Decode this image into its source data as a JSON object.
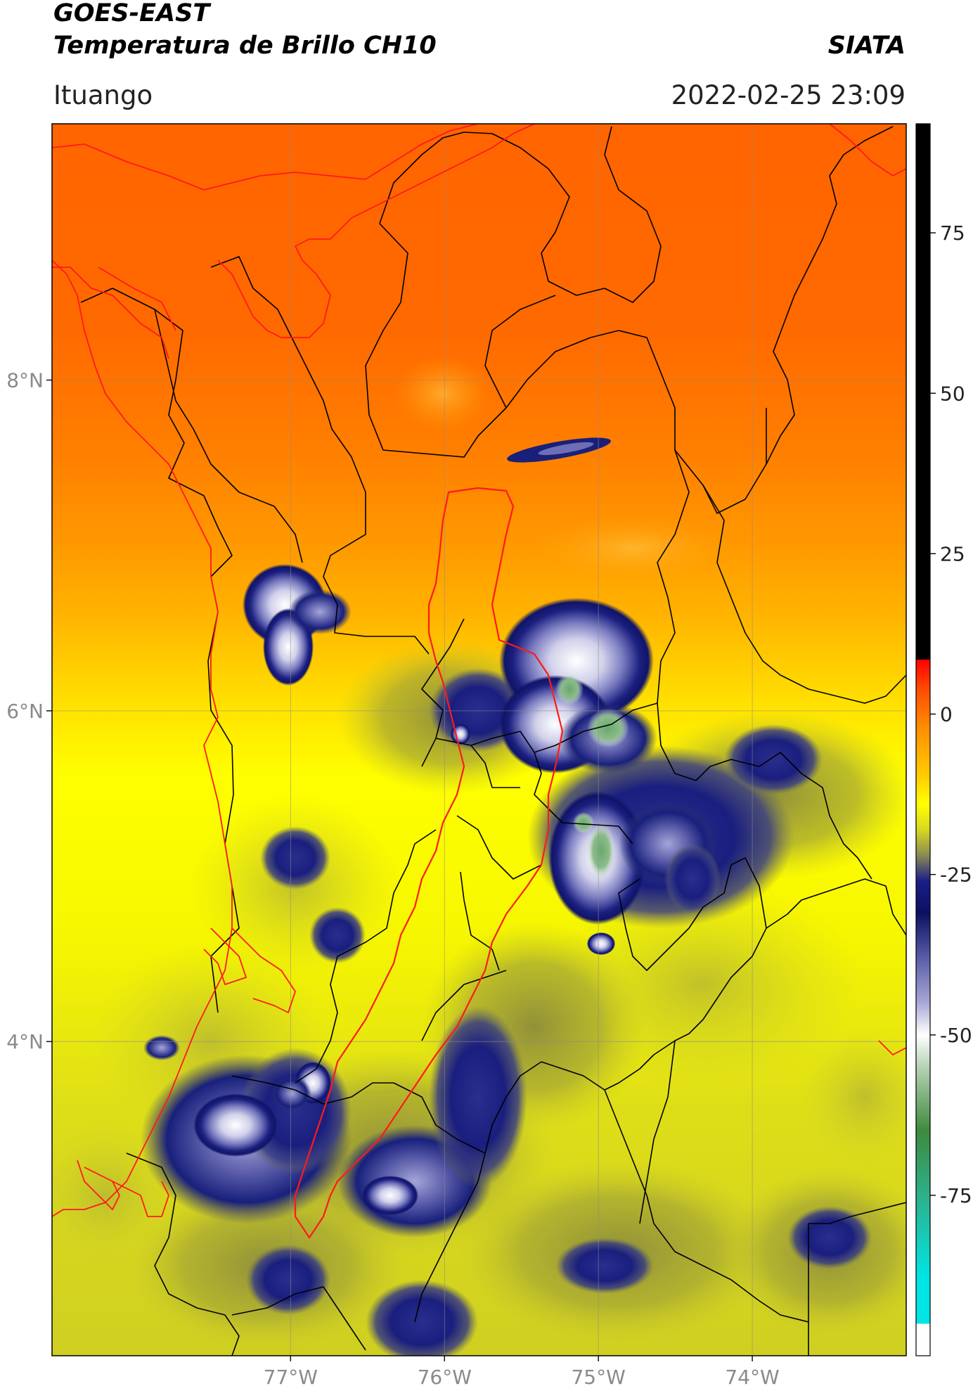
{
  "header": {
    "title_line1": "GOES-EAST",
    "title_line2": "Temperatura de Brillo CH10",
    "brand": "SIATA",
    "region": "Ituango",
    "timestamp": "2022-02-25 23:09"
  },
  "map": {
    "lon_range": [
      -78.55,
      -73.0
    ],
    "lat_range": [
      2.1,
      9.55
    ],
    "lat_ticks": [
      {
        "value": 8,
        "label": "8°N"
      },
      {
        "value": 6,
        "label": "6°N"
      },
      {
        "value": 4,
        "label": "4°N"
      }
    ],
    "lon_ticks": [
      {
        "value": -77,
        "label": "77°W"
      },
      {
        "value": -76,
        "label": "76°W"
      },
      {
        "value": -75,
        "label": "75°W"
      },
      {
        "value": -74,
        "label": "74°W"
      }
    ],
    "gridlines": true,
    "colors": {
      "warm_orange": "#ff6a00",
      "orange": "#ff9a00",
      "yellow": "#ffff00",
      "olive": "#b5b52e",
      "navy": "#141a78",
      "lilac": "#9fa0d4",
      "white": "#ffffff",
      "green": "#5d9e62",
      "border_department": "#000000",
      "border_antioquia": "#ff1a1a"
    },
    "cold_cloud_cells": [
      {
        "lon": -77.0,
        "lat": 6.3,
        "min_temp": -52
      },
      {
        "lon": -75.05,
        "lat": 5.9,
        "min_temp": -60
      },
      {
        "lon": -74.9,
        "lat": 5.65,
        "min_temp": -65
      },
      {
        "lon": -75.0,
        "lat": 4.85,
        "min_temp": -55
      },
      {
        "lon": -74.5,
        "lat": 4.65,
        "min_temp": -40
      },
      {
        "lon": -77.1,
        "lat": 2.85,
        "min_temp": -42
      },
      {
        "lon": -76.15,
        "lat": 2.65,
        "min_temp": -38
      },
      {
        "lon": -74.95,
        "lat": 7.45,
        "min_temp": -35
      }
    ]
  },
  "colorbar": {
    "range": [
      -100,
      92
    ],
    "ticks": [
      {
        "value": 75,
        "label": "75"
      },
      {
        "value": 50,
        "label": "50"
      },
      {
        "value": 25,
        "label": "25"
      },
      {
        "value": 0,
        "label": "0"
      },
      {
        "value": -25,
        "label": "-25"
      },
      {
        "value": -50,
        "label": "-50"
      },
      {
        "value": -75,
        "label": "-75"
      }
    ],
    "stops": [
      {
        "value": 92,
        "color": "#000000"
      },
      {
        "value": 8.5,
        "color": "#000000"
      },
      {
        "value": 8.5,
        "color": "#ff0000"
      },
      {
        "value": 4,
        "color": "#ff4a00"
      },
      {
        "value": -2,
        "color": "#ff8c00"
      },
      {
        "value": -10,
        "color": "#ffd000"
      },
      {
        "value": -14,
        "color": "#ffff00"
      },
      {
        "value": -18,
        "color": "#d8d820"
      },
      {
        "value": -22,
        "color": "#8a8a55"
      },
      {
        "value": -26,
        "color": "#1a1e88"
      },
      {
        "value": -31,
        "color": "#0c1060"
      },
      {
        "value": -38,
        "color": "#5a5ca8"
      },
      {
        "value": -45,
        "color": "#a8a8d6"
      },
      {
        "value": -50,
        "color": "#ffffff"
      },
      {
        "value": -55,
        "color": "#b6d2b4"
      },
      {
        "value": -65,
        "color": "#3d8a3d"
      },
      {
        "value": -75,
        "color": "#2eb089"
      },
      {
        "value": -88,
        "color": "#00e5e5"
      },
      {
        "value": -95,
        "color": "#00e5e5"
      },
      {
        "value": -95,
        "color": "#ffffff"
      },
      {
        "value": -100,
        "color": "#ffffff"
      }
    ]
  }
}
